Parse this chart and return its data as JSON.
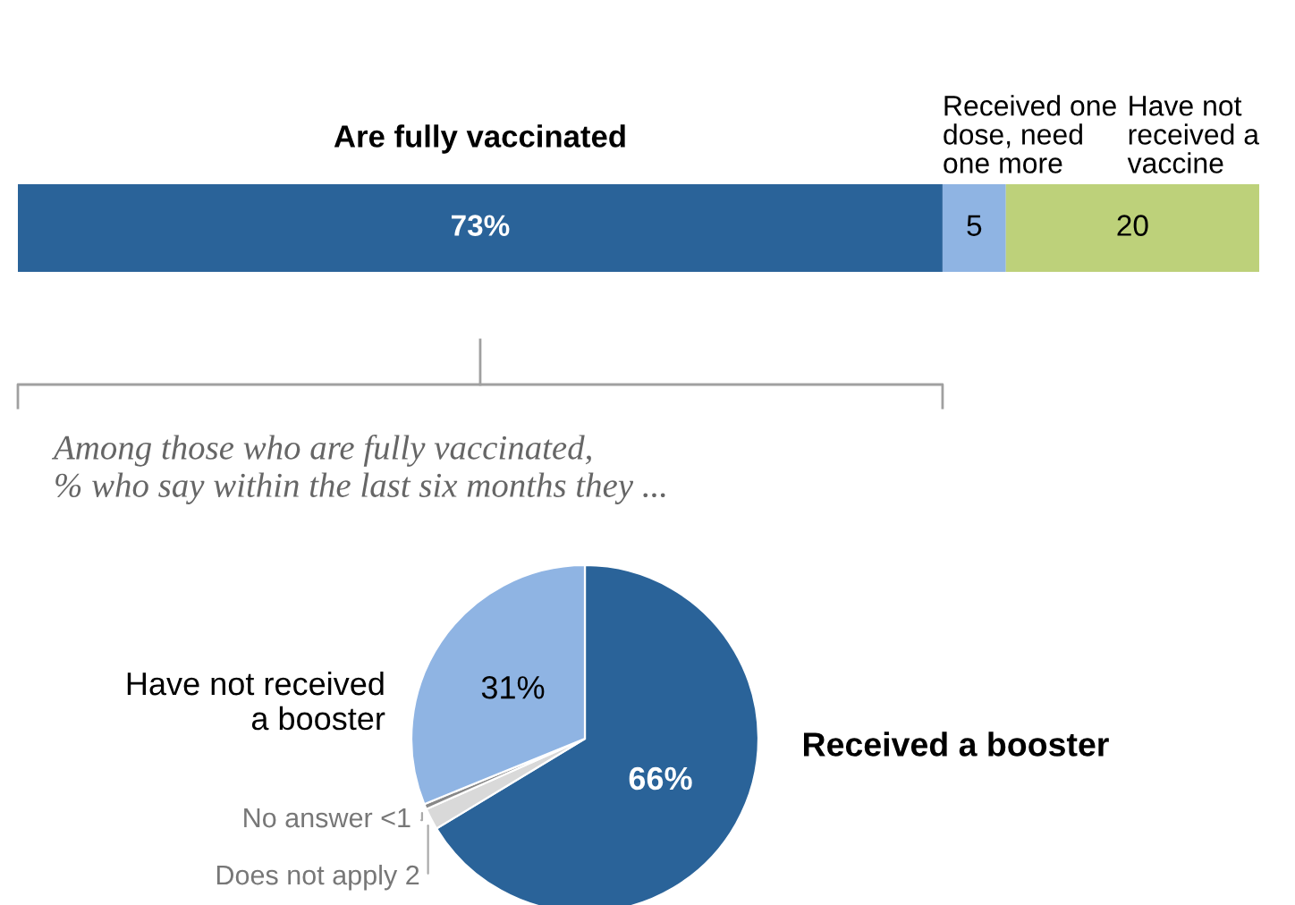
{
  "chart_data": [
    {
      "type": "bar",
      "orientation": "horizontal",
      "stacked": true,
      "categories": [
        null
      ],
      "xlim": [
        0,
        98
      ],
      "tick_labels": false,
      "series": [
        {
          "name": "Are fully vaccinated",
          "color": "#2a6399",
          "values": [
            73
          ],
          "value_labels": [
            "73%"
          ]
        },
        {
          "name": "Received one\ndose, need\none more",
          "color": "#8fb4e3",
          "values": [
            5
          ],
          "value_labels": [
            "5"
          ]
        },
        {
          "name": "Have not\nreceived a\nvaccine",
          "color": "#bdd17a",
          "values": [
            20
          ],
          "value_labels": [
            "20"
          ]
        }
      ]
    },
    {
      "type": "pie",
      "title": "Among those who are fully vaccinated,\n% who say within the last six months they ...",
      "categories": [
        "Received a booster",
        "Does not apply",
        "No answer",
        "Have not received\na booster"
      ],
      "values": [
        66,
        2,
        0.5,
        31
      ],
      "value_labels": [
        "66%",
        "2",
        "<1",
        "31%"
      ],
      "colors": [
        "#2a6399",
        "#d9d9d9",
        "#888888",
        "#8fb4e3"
      ]
    }
  ]
}
